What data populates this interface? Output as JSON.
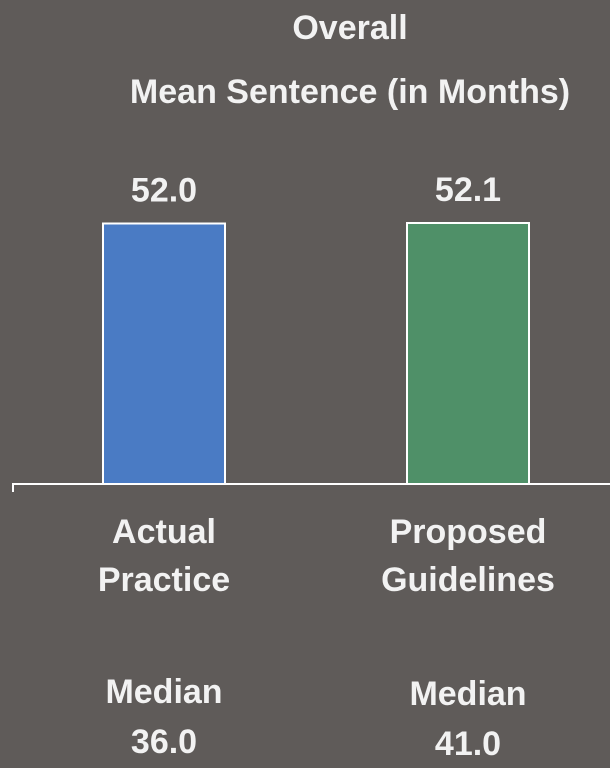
{
  "chart_data": {
    "type": "bar",
    "title": "Overall",
    "subtitle": "Mean Sentence (in Months)",
    "categories": [
      "Actual Practice",
      "Proposed Guidelines"
    ],
    "values": [
      52.0,
      52.1
    ],
    "value_labels": [
      "52.0",
      "52.1"
    ],
    "colors": [
      "#4a7bc4",
      "#4f9068"
    ],
    "ylim": [
      0,
      52.1
    ],
    "medians": {
      "label": "Median",
      "values": [
        36.0,
        41.0
      ],
      "value_labels": [
        "36.0",
        "41.0"
      ]
    }
  }
}
